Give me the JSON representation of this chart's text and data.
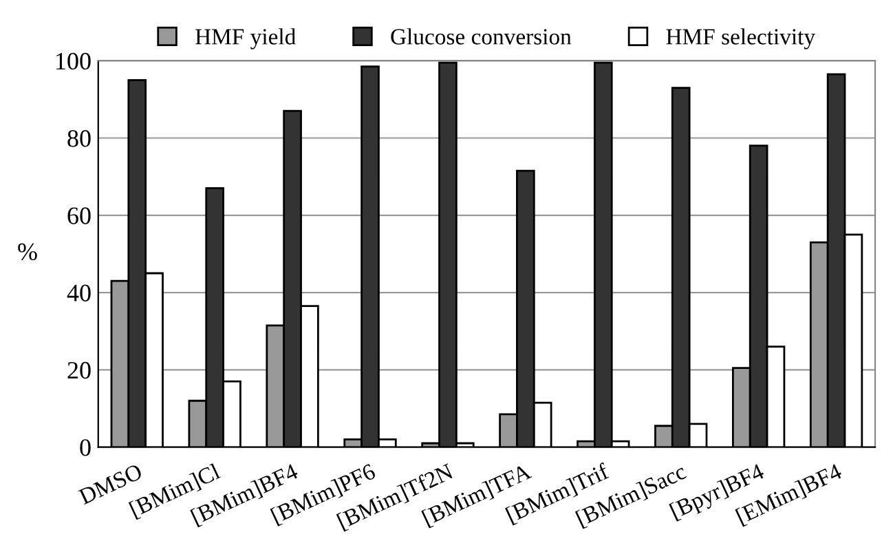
{
  "chart_data": {
    "type": "bar",
    "ylabel": "%",
    "categories": [
      "DMSO",
      "[BMim]Cl",
      "[BMim]BF4",
      "[BMim]PF6",
      "[BMim]Tf2N",
      "[BMim]TFA",
      "[BMim]Trif",
      "[BMim]Sacc",
      "[Bpyr]BF4",
      "[EMim]BF4"
    ],
    "series": [
      {
        "name": "HMF yield",
        "color": "#999999",
        "values": [
          43,
          12,
          31.5,
          2,
          1,
          8.5,
          1.5,
          5.5,
          20.5,
          53
        ]
      },
      {
        "name": "Glucose conversion",
        "color": "#333333",
        "values": [
          95,
          67,
          87,
          98.5,
          99.5,
          71.5,
          99.5,
          93,
          78,
          96.5
        ]
      },
      {
        "name": "HMF selectivity",
        "color": "#ffffff",
        "values": [
          45,
          17,
          36.5,
          2,
          1,
          11.5,
          1.5,
          6,
          26,
          55
        ]
      }
    ],
    "ylim": [
      0,
      100
    ],
    "yticks": [
      0,
      20,
      40,
      60,
      80,
      100
    ],
    "grid": "y",
    "legend": "top"
  }
}
